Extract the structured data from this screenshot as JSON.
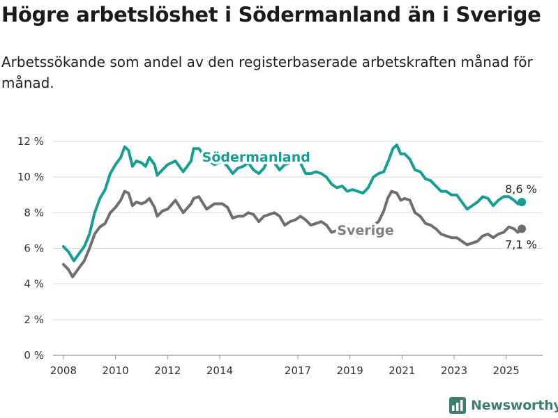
{
  "title": "Högre arbetslöshet i Södermanland än i Sverige",
  "subtitle": "Arbetssökande som andel av den registerbaserade arbetskraften månad för månad.",
  "brand": {
    "name": "Newsworthy",
    "icon": "bar-chart-logo-icon",
    "color": "#3f7f73"
  },
  "chart_data": {
    "type": "line",
    "ylim": [
      0,
      12
    ],
    "xlim": [
      2007.6,
      2026.4
    ],
    "yticks": [
      {
        "value": 0,
        "label": "0 %"
      },
      {
        "value": 2,
        "label": "2 %"
      },
      {
        "value": 4,
        "label": "4 %"
      },
      {
        "value": 6,
        "label": "6 %"
      },
      {
        "value": 8,
        "label": "8 %"
      },
      {
        "value": 10,
        "label": "10 %"
      },
      {
        "value": 12,
        "label": "12 %"
      }
    ],
    "xticks": [
      {
        "value": 2008,
        "label": "2008"
      },
      {
        "value": 2010,
        "label": "2010"
      },
      {
        "value": 2012,
        "label": "2012"
      },
      {
        "value": 2014,
        "label": "2014"
      },
      {
        "value": 2017,
        "label": "2017"
      },
      {
        "value": 2019,
        "label": "2019"
      },
      {
        "value": 2021,
        "label": "2021"
      },
      {
        "value": 2023,
        "label": "2023"
      },
      {
        "value": 2025,
        "label": "2025"
      }
    ],
    "grid": true,
    "series": [
      {
        "name": "Södermanland",
        "color": "#159e94",
        "end_label": "8,6 %",
        "points": [
          [
            2008.0,
            6.1
          ],
          [
            2008.2,
            5.8
          ],
          [
            2008.4,
            5.3
          ],
          [
            2008.6,
            5.7
          ],
          [
            2008.8,
            6.1
          ],
          [
            2009.0,
            6.8
          ],
          [
            2009.2,
            8.0
          ],
          [
            2009.4,
            8.8
          ],
          [
            2009.6,
            9.3
          ],
          [
            2009.8,
            10.2
          ],
          [
            2010.0,
            10.7
          ],
          [
            2010.2,
            11.1
          ],
          [
            2010.35,
            11.7
          ],
          [
            2010.5,
            11.5
          ],
          [
            2010.65,
            10.6
          ],
          [
            2010.8,
            10.9
          ],
          [
            2011.0,
            10.8
          ],
          [
            2011.15,
            10.6
          ],
          [
            2011.3,
            11.1
          ],
          [
            2011.5,
            10.7
          ],
          [
            2011.6,
            10.1
          ],
          [
            2011.8,
            10.4
          ],
          [
            2012.0,
            10.7
          ],
          [
            2012.3,
            10.9
          ],
          [
            2012.6,
            10.3
          ],
          [
            2012.9,
            10.9
          ],
          [
            2013.0,
            11.6
          ],
          [
            2013.2,
            11.6
          ],
          [
            2013.5,
            11.0
          ],
          [
            2013.8,
            10.7
          ],
          [
            2014.1,
            10.9
          ],
          [
            2014.3,
            10.6
          ],
          [
            2014.5,
            10.2
          ],
          [
            2014.7,
            10.5
          ],
          [
            2014.9,
            10.6
          ],
          [
            2015.1,
            10.8
          ],
          [
            2015.3,
            10.4
          ],
          [
            2015.5,
            10.2
          ],
          [
            2015.7,
            10.5
          ],
          [
            2015.9,
            11.2
          ],
          [
            2016.1,
            10.8
          ],
          [
            2016.3,
            10.4
          ],
          [
            2016.5,
            10.7
          ],
          [
            2016.7,
            10.8
          ],
          [
            2016.9,
            11.0
          ],
          [
            2017.1,
            10.8
          ],
          [
            2017.3,
            10.2
          ],
          [
            2017.5,
            10.2
          ],
          [
            2017.7,
            10.3
          ],
          [
            2017.9,
            10.2
          ],
          [
            2018.1,
            10.0
          ],
          [
            2018.3,
            9.6
          ],
          [
            2018.5,
            9.4
          ],
          [
            2018.7,
            9.5
          ],
          [
            2018.9,
            9.2
          ],
          [
            2019.1,
            9.3
          ],
          [
            2019.3,
            9.2
          ],
          [
            2019.5,
            9.1
          ],
          [
            2019.7,
            9.4
          ],
          [
            2019.9,
            10.0
          ],
          [
            2020.1,
            10.2
          ],
          [
            2020.3,
            10.3
          ],
          [
            2020.5,
            11.0
          ],
          [
            2020.65,
            11.6
          ],
          [
            2020.8,
            11.8
          ],
          [
            2020.95,
            11.3
          ],
          [
            2021.1,
            11.3
          ],
          [
            2021.3,
            11.0
          ],
          [
            2021.5,
            10.4
          ],
          [
            2021.7,
            10.3
          ],
          [
            2021.9,
            9.9
          ],
          [
            2022.1,
            9.8
          ],
          [
            2022.3,
            9.5
          ],
          [
            2022.5,
            9.2
          ],
          [
            2022.7,
            9.2
          ],
          [
            2022.9,
            9.0
          ],
          [
            2023.1,
            9.0
          ],
          [
            2023.3,
            8.6
          ],
          [
            2023.5,
            8.2
          ],
          [
            2023.7,
            8.4
          ],
          [
            2023.9,
            8.6
          ],
          [
            2024.1,
            8.9
          ],
          [
            2024.3,
            8.8
          ],
          [
            2024.5,
            8.4
          ],
          [
            2024.7,
            8.7
          ],
          [
            2024.9,
            8.9
          ],
          [
            2025.1,
            8.9
          ],
          [
            2025.3,
            8.7
          ],
          [
            2025.45,
            8.5
          ],
          [
            2025.6,
            8.6
          ]
        ]
      },
      {
        "name": "Sverige",
        "color": "#6e6e6e",
        "end_label": "7,1 %",
        "points": [
          [
            2008.0,
            5.1
          ],
          [
            2008.2,
            4.8
          ],
          [
            2008.35,
            4.4
          ],
          [
            2008.6,
            4.9
          ],
          [
            2008.8,
            5.3
          ],
          [
            2009.0,
            6.0
          ],
          [
            2009.2,
            6.8
          ],
          [
            2009.4,
            7.2
          ],
          [
            2009.6,
            7.4
          ],
          [
            2009.8,
            8.0
          ],
          [
            2010.0,
            8.3
          ],
          [
            2010.2,
            8.7
          ],
          [
            2010.35,
            9.2
          ],
          [
            2010.5,
            9.1
          ],
          [
            2010.65,
            8.4
          ],
          [
            2010.8,
            8.6
          ],
          [
            2011.0,
            8.5
          ],
          [
            2011.15,
            8.6
          ],
          [
            2011.3,
            8.8
          ],
          [
            2011.5,
            8.3
          ],
          [
            2011.6,
            7.8
          ],
          [
            2011.8,
            8.1
          ],
          [
            2012.0,
            8.2
          ],
          [
            2012.3,
            8.7
          ],
          [
            2012.6,
            8.0
          ],
          [
            2012.9,
            8.5
          ],
          [
            2013.0,
            8.8
          ],
          [
            2013.2,
            8.9
          ],
          [
            2013.5,
            8.2
          ],
          [
            2013.8,
            8.5
          ],
          [
            2014.1,
            8.5
          ],
          [
            2014.3,
            8.3
          ],
          [
            2014.5,
            7.7
          ],
          [
            2014.7,
            7.8
          ],
          [
            2014.9,
            7.8
          ],
          [
            2015.1,
            8.0
          ],
          [
            2015.3,
            7.9
          ],
          [
            2015.5,
            7.5
          ],
          [
            2015.7,
            7.8
          ],
          [
            2015.9,
            7.9
          ],
          [
            2016.1,
            8.0
          ],
          [
            2016.3,
            7.8
          ],
          [
            2016.5,
            7.3
          ],
          [
            2016.7,
            7.5
          ],
          [
            2016.9,
            7.6
          ],
          [
            2017.1,
            7.8
          ],
          [
            2017.3,
            7.6
          ],
          [
            2017.5,
            7.3
          ],
          [
            2017.7,
            7.4
          ],
          [
            2017.9,
            7.5
          ],
          [
            2018.1,
            7.3
          ],
          [
            2018.3,
            6.9
          ],
          [
            2018.5,
            7.0
          ],
          [
            2018.7,
            7.0
          ],
          [
            2018.9,
            6.8
          ],
          [
            2019.1,
            6.9
          ],
          [
            2019.3,
            6.7
          ],
          [
            2019.5,
            6.7
          ],
          [
            2019.7,
            7.0
          ],
          [
            2019.9,
            7.3
          ],
          [
            2020.1,
            7.5
          ],
          [
            2020.3,
            8.1
          ],
          [
            2020.45,
            8.8
          ],
          [
            2020.6,
            9.2
          ],
          [
            2020.8,
            9.1
          ],
          [
            2020.95,
            8.7
          ],
          [
            2021.1,
            8.8
          ],
          [
            2021.3,
            8.7
          ],
          [
            2021.5,
            8.0
          ],
          [
            2021.7,
            7.8
          ],
          [
            2021.9,
            7.4
          ],
          [
            2022.1,
            7.3
          ],
          [
            2022.3,
            7.1
          ],
          [
            2022.5,
            6.8
          ],
          [
            2022.7,
            6.7
          ],
          [
            2022.9,
            6.6
          ],
          [
            2023.1,
            6.6
          ],
          [
            2023.3,
            6.4
          ],
          [
            2023.5,
            6.2
          ],
          [
            2023.7,
            6.3
          ],
          [
            2023.9,
            6.4
          ],
          [
            2024.1,
            6.7
          ],
          [
            2024.3,
            6.8
          ],
          [
            2024.5,
            6.6
          ],
          [
            2024.7,
            6.8
          ],
          [
            2024.9,
            6.9
          ],
          [
            2025.1,
            7.2
          ],
          [
            2025.3,
            7.1
          ],
          [
            2025.45,
            6.9
          ],
          [
            2025.6,
            7.1
          ]
        ]
      }
    ]
  }
}
